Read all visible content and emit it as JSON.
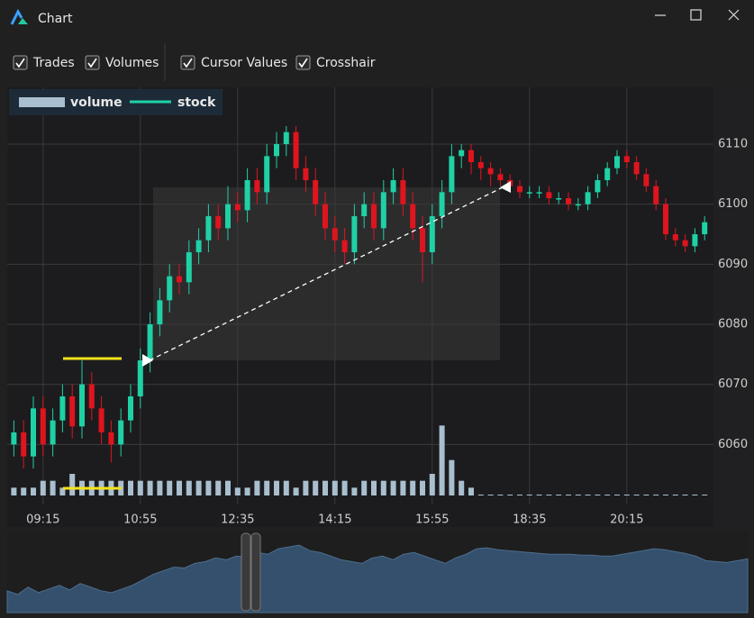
{
  "window": {
    "title": "Chart"
  },
  "toolbar": [
    {
      "label": "Trades",
      "checked": true
    },
    {
      "label": "Volumes",
      "checked": true
    },
    {
      "label": "Cursor Values",
      "checked": true
    },
    {
      "label": "Crosshair",
      "checked": true
    }
  ],
  "chart_data": {
    "type": "candlestick",
    "legend": "top-left",
    "grid": true,
    "categories": [
      null,
      null,
      null,
      "09:15",
      null,
      null,
      null,
      null,
      null,
      null,
      null,
      null,
      null,
      "10:55",
      null,
      null,
      null,
      null,
      null,
      null,
      null,
      null,
      null,
      "12:35",
      null,
      null,
      null,
      null,
      null,
      null,
      null,
      null,
      null,
      "14:15",
      null,
      null,
      null,
      null,
      null,
      null,
      null,
      null,
      null,
      "15:55",
      null,
      null,
      null,
      null,
      null,
      null,
      null,
      null,
      null,
      "18:35",
      null,
      null,
      null,
      null,
      null,
      null,
      null,
      null,
      null,
      "20:15",
      null,
      null,
      null,
      null,
      null,
      null,
      null,
      null
    ],
    "ylim": [
      6050,
      6119
    ],
    "yticks": [
      6060,
      6070,
      6080,
      6090,
      6100,
      6110
    ],
    "volume_lim": [
      0,
      60
    ],
    "series": [
      {
        "name": "volume",
        "color": "#a9bfcf",
        "values": [
          1,
          1,
          1,
          2,
          2,
          1,
          3,
          2,
          2,
          2,
          2,
          2,
          2,
          2,
          2,
          2,
          2,
          2,
          2,
          2,
          2,
          2,
          2,
          1,
          1,
          2,
          2,
          2,
          2,
          1,
          2,
          2,
          2,
          2,
          2,
          1,
          2,
          2,
          2,
          2,
          2,
          2,
          2,
          3,
          10,
          5,
          2,
          1,
          0,
          0,
          0,
          0,
          0,
          0,
          0,
          0,
          0,
          0,
          0,
          0,
          0,
          0,
          0,
          0,
          0,
          0,
          0,
          0,
          0,
          0,
          0,
          0
        ]
      },
      {
        "name": "stock",
        "color": "#1fd1a5",
        "down_color": "#e0141e",
        "open": [
          6060,
          6062,
          6058,
          6066,
          6060,
          6064,
          6068,
          6063,
          6070,
          6066,
          6062,
          6060,
          6064,
          6068,
          6074,
          6080,
          6084,
          6088,
          6087,
          6092,
          6094,
          6098,
          6096,
          6100,
          6099,
          6104,
          6102,
          6108,
          6110,
          6112,
          6106,
          6104,
          6100,
          6096,
          6094,
          6092,
          6098,
          6100,
          6096,
          6102,
          6104,
          6100,
          6096,
          6092,
          6098,
          6102,
          6108,
          6109,
          6107,
          6106,
          6105,
          6104,
          6103,
          6102,
          6102,
          6102,
          6101,
          6101,
          6100,
          6100,
          6102,
          6104,
          6106,
          6108,
          6107,
          6105,
          6103,
          6100,
          6095,
          6094,
          6093,
          6095
        ],
        "high": [
          6064,
          6064,
          6068,
          6068,
          6066,
          6070,
          6070,
          6074,
          6072,
          6068,
          6064,
          6066,
          6070,
          6076,
          6082,
          6086,
          6090,
          6090,
          6094,
          6096,
          6100,
          6100,
          6103,
          6102,
          6106,
          6106,
          6110,
          6112,
          6113,
          6113,
          6108,
          6106,
          6102,
          6098,
          6096,
          6100,
          6102,
          6102,
          6104,
          6106,
          6106,
          6102,
          6098,
          6100,
          6104,
          6110,
          6110,
          6110,
          6108,
          6107,
          6106,
          6105,
          6104,
          6103,
          6103,
          6103,
          6102,
          6102,
          6101,
          6103,
          6105,
          6107,
          6109,
          6109,
          6108,
          6106,
          6104,
          6101,
          6096,
          6095,
          6096,
          6098
        ],
        "low": [
          6058,
          6056,
          6056,
          6058,
          6058,
          6062,
          6061,
          6061,
          6064,
          6060,
          6057,
          6058,
          6062,
          6066,
          6072,
          6078,
          6082,
          6085,
          6085,
          6090,
          6092,
          6094,
          6094,
          6097,
          6097,
          6100,
          6100,
          6106,
          6108,
          6104,
          6102,
          6098,
          6094,
          6092,
          6090,
          6090,
          6096,
          6094,
          6094,
          6100,
          6098,
          6094,
          6087,
          6090,
          6096,
          6100,
          6106,
          6105,
          6104,
          6103,
          6103,
          6102,
          6101,
          6101,
          6101,
          6100,
          6100,
          6099,
          6099,
          6099,
          6101,
          6103,
          6105,
          6106,
          6104,
          6102,
          6099,
          6094,
          6093,
          6092,
          6092,
          6094
        ],
        "close": [
          6062,
          6058,
          6066,
          6060,
          6064,
          6068,
          6063,
          6070,
          6066,
          6062,
          6060,
          6064,
          6068,
          6074,
          6080,
          6084,
          6088,
          6087,
          6092,
          6094,
          6098,
          6096,
          6100,
          6099,
          6104,
          6102,
          6108,
          6110,
          6112,
          6106,
          6104,
          6100,
          6096,
          6094,
          6092,
          6098,
          6100,
          6096,
          6102,
          6104,
          6100,
          6096,
          6092,
          6098,
          6102,
          6108,
          6109,
          6107,
          6106,
          6105,
          6104,
          6103,
          6102,
          6102,
          6102,
          6101,
          6101,
          6100,
          6100,
          6102,
          6104,
          6106,
          6108,
          6107,
          6105,
          6103,
          6100,
          6095,
          6094,
          6093,
          6095,
          6097
        ]
      }
    ]
  }
}
